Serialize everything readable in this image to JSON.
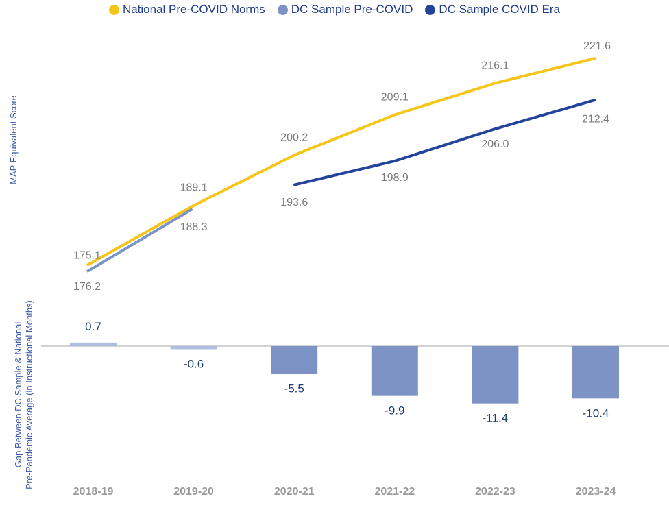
{
  "chart_data": {
    "type": "line+bar",
    "legend": [
      {
        "name": "National Pre-COVID Norms",
        "color": "#f5c518"
      },
      {
        "name": "DC Sample Pre-COVID",
        "color": "#7d93c6"
      },
      {
        "name": "DC Sample COVID Era",
        "color": "#23449a"
      }
    ],
    "categories": [
      "2018-19",
      "2019-20",
      "2020-21",
      "2021-22",
      "2022-23",
      "2023-24"
    ],
    "line_ylabel": "MAP Equivalent Score",
    "series": [
      {
        "name": "National Pre-COVID Norms",
        "values": [
          176.2,
          189.1,
          200.2,
          209.1,
          216.1,
          221.6
        ]
      },
      {
        "name": "DC Sample Pre-COVID",
        "values": [
          175.1,
          188.3,
          null,
          null,
          null,
          null
        ]
      },
      {
        "name": "DC Sample COVID Era",
        "values": [
          null,
          null,
          193.6,
          198.9,
          206.0,
          212.4
        ]
      }
    ],
    "line_labels": [
      {
        "text": "176.2",
        "series": 0,
        "index": 0
      },
      {
        "text": "189.1",
        "series": 0,
        "index": 1
      },
      {
        "text": "200.2",
        "series": 0,
        "index": 2
      },
      {
        "text": "209.1",
        "series": 0,
        "index": 3
      },
      {
        "text": "216.1",
        "series": 0,
        "index": 4
      },
      {
        "text": "221.6",
        "series": 0,
        "index": 5
      },
      {
        "text": "175.1",
        "series": 1,
        "index": 0
      },
      {
        "text": "188.3",
        "series": 1,
        "index": 1
      },
      {
        "text": "193.6",
        "series": 2,
        "index": 2
      },
      {
        "text": "198.9",
        "series": 2,
        "index": 3
      },
      {
        "text": "206.0",
        "series": 2,
        "index": 4
      },
      {
        "text": "212.4",
        "series": 2,
        "index": 5
      }
    ],
    "gap_ylabel_line1": "Gap Between DC Sample & National",
    "gap_ylabel_line2": "Pre-Pandemic Average (in Instructional Months)",
    "gap_values": [
      0.7,
      -0.6,
      -5.5,
      -9.9,
      -11.4,
      -10.4
    ],
    "gap_labels": [
      "0.7",
      "-0.6",
      "-5.5",
      "-9.9",
      "-11.4",
      "-10.4"
    ]
  }
}
